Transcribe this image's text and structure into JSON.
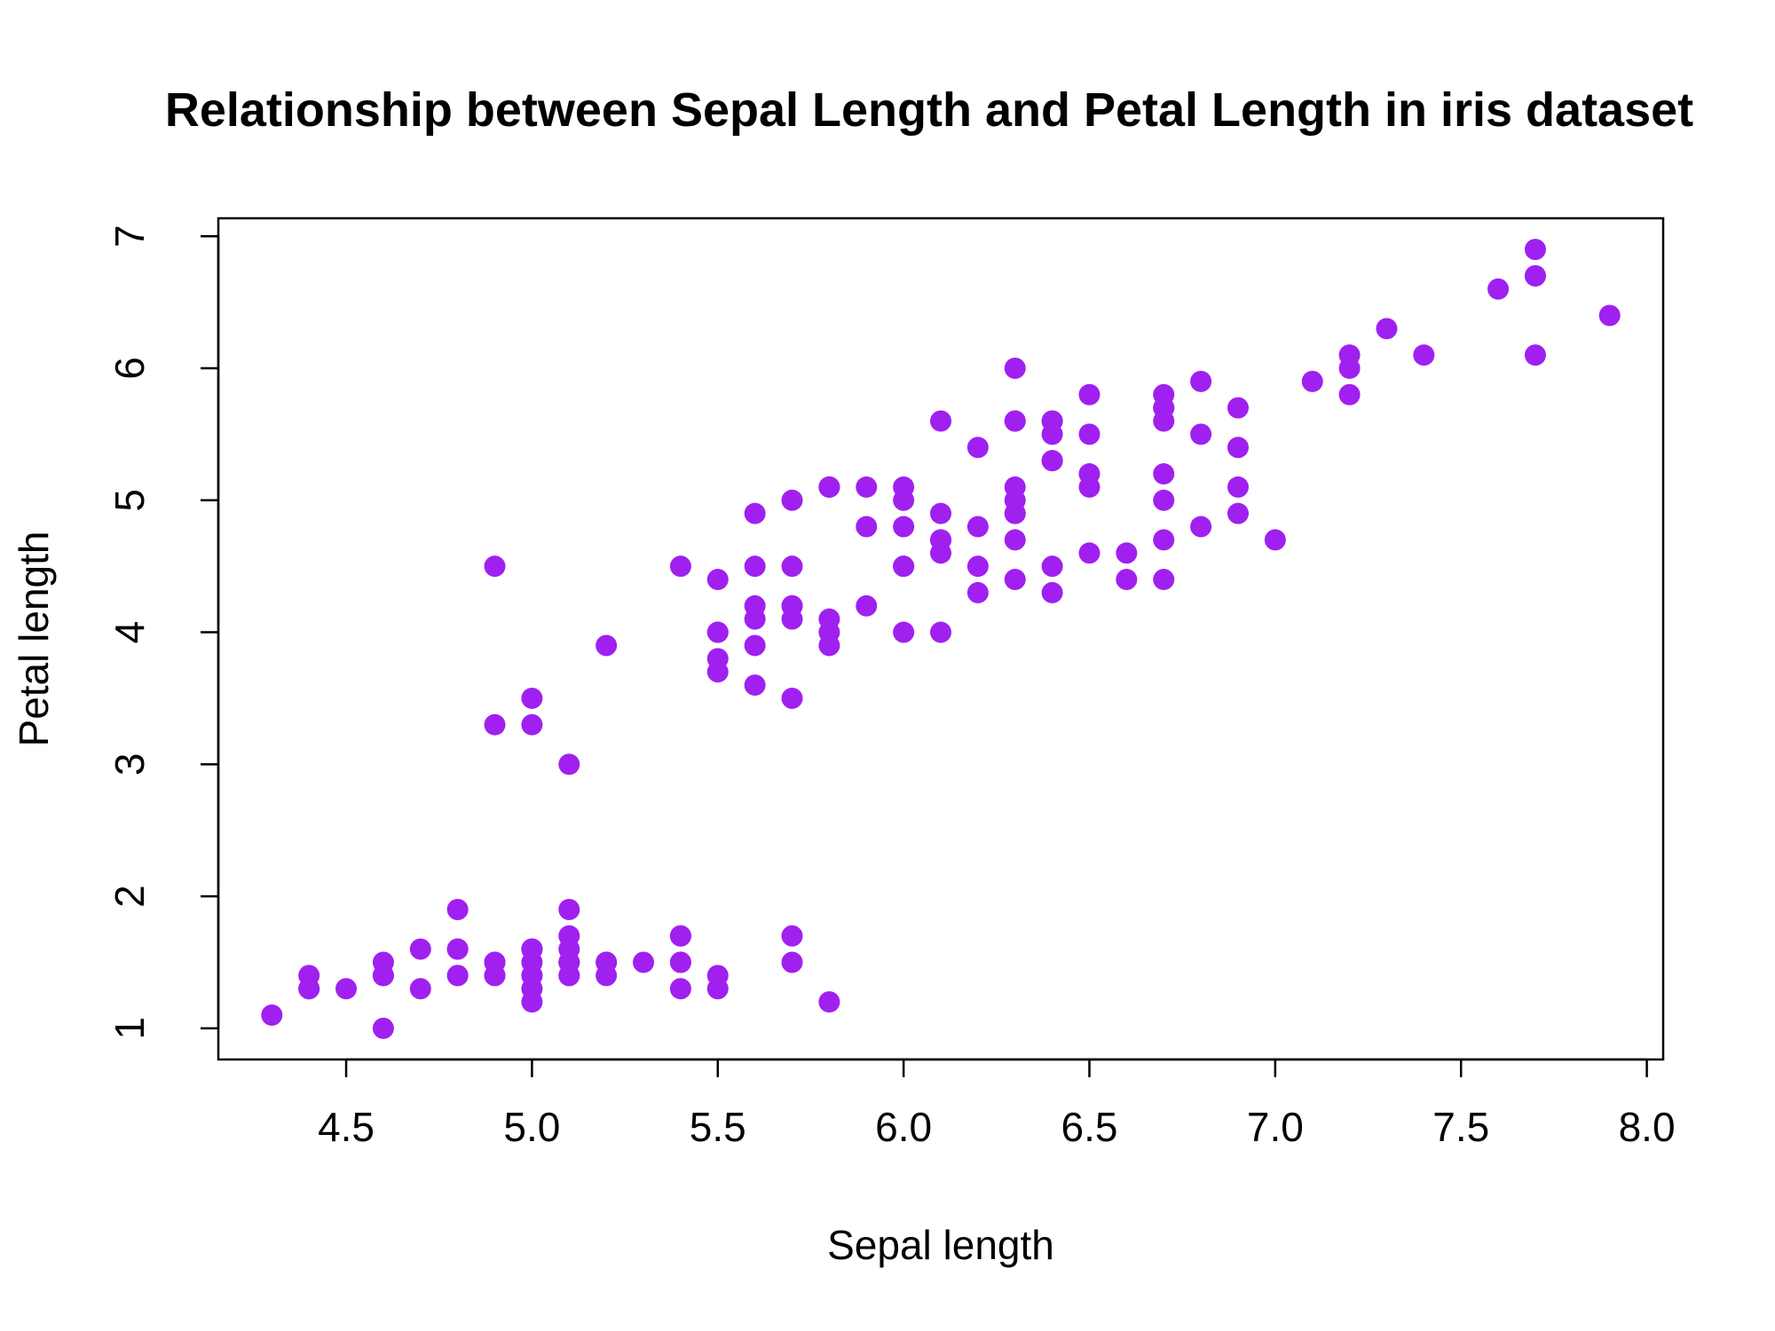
{
  "chart_data": {
    "type": "scatter",
    "title": "Relationship between Sepal Length and Petal Length in iris dataset",
    "xlabel": "Sepal length",
    "ylabel": "Petal length",
    "xlim": [
      4.3,
      7.9
    ],
    "ylim": [
      1.0,
      6.9
    ],
    "x_ticks": [
      4.5,
      5.0,
      5.5,
      6.0,
      6.5,
      7.0,
      7.5,
      8.0
    ],
    "x_tick_labels": [
      "4.5",
      "5.0",
      "5.5",
      "6.0",
      "6.5",
      "7.0",
      "7.5",
      "8.0"
    ],
    "y_ticks": [
      1,
      2,
      3,
      4,
      5,
      6,
      7
    ],
    "y_tick_labels": [
      "1",
      "2",
      "3",
      "4",
      "5",
      "6",
      "7"
    ],
    "grid": false,
    "legend": "none",
    "point_color": "#A020F0",
    "series": [
      {
        "points": [
          [
            5.1,
            1.4
          ],
          [
            4.9,
            1.4
          ],
          [
            4.7,
            1.3
          ],
          [
            4.6,
            1.5
          ],
          [
            5.0,
            1.4
          ],
          [
            5.4,
            1.7
          ],
          [
            4.6,
            1.4
          ],
          [
            5.0,
            1.5
          ],
          [
            4.4,
            1.4
          ],
          [
            4.9,
            1.5
          ],
          [
            5.4,
            1.5
          ],
          [
            4.8,
            1.6
          ],
          [
            4.8,
            1.4
          ],
          [
            4.3,
            1.1
          ],
          [
            5.8,
            1.2
          ],
          [
            5.7,
            1.5
          ],
          [
            5.4,
            1.3
          ],
          [
            5.1,
            1.4
          ],
          [
            5.7,
            1.7
          ],
          [
            5.1,
            1.5
          ],
          [
            5.4,
            1.7
          ],
          [
            5.1,
            1.5
          ],
          [
            4.6,
            1.0
          ],
          [
            5.1,
            1.7
          ],
          [
            4.8,
            1.9
          ],
          [
            5.0,
            1.6
          ],
          [
            5.0,
            1.6
          ],
          [
            5.2,
            1.5
          ],
          [
            5.2,
            1.4
          ],
          [
            4.7,
            1.6
          ],
          [
            4.8,
            1.6
          ],
          [
            5.4,
            1.5
          ],
          [
            5.2,
            1.5
          ],
          [
            5.5,
            1.4
          ],
          [
            4.9,
            1.5
          ],
          [
            5.0,
            1.2
          ],
          [
            5.5,
            1.3
          ],
          [
            4.9,
            1.4
          ],
          [
            4.4,
            1.3
          ],
          [
            5.1,
            1.5
          ],
          [
            5.0,
            1.3
          ],
          [
            4.5,
            1.3
          ],
          [
            4.4,
            1.3
          ],
          [
            5.0,
            1.6
          ],
          [
            5.1,
            1.9
          ],
          [
            4.8,
            1.4
          ],
          [
            5.1,
            1.6
          ],
          [
            4.6,
            1.4
          ],
          [
            5.3,
            1.5
          ],
          [
            5.0,
            1.4
          ],
          [
            7.0,
            4.7
          ],
          [
            6.4,
            4.5
          ],
          [
            6.9,
            4.9
          ],
          [
            5.5,
            4.0
          ],
          [
            6.5,
            4.6
          ],
          [
            5.7,
            4.5
          ],
          [
            6.3,
            4.7
          ],
          [
            4.9,
            3.3
          ],
          [
            6.6,
            4.6
          ],
          [
            5.2,
            3.9
          ],
          [
            5.0,
            3.5
          ],
          [
            5.9,
            4.2
          ],
          [
            6.0,
            4.0
          ],
          [
            6.1,
            4.7
          ],
          [
            5.6,
            3.6
          ],
          [
            6.7,
            4.4
          ],
          [
            5.6,
            4.5
          ],
          [
            5.8,
            4.1
          ],
          [
            6.2,
            4.5
          ],
          [
            5.6,
            3.9
          ],
          [
            5.9,
            4.8
          ],
          [
            6.1,
            4.0
          ],
          [
            6.3,
            4.9
          ],
          [
            6.1,
            4.7
          ],
          [
            6.4,
            4.3
          ],
          [
            6.6,
            4.4
          ],
          [
            6.8,
            4.8
          ],
          [
            6.7,
            5.0
          ],
          [
            6.0,
            4.5
          ],
          [
            5.7,
            3.5
          ],
          [
            5.5,
            3.8
          ],
          [
            5.5,
            3.7
          ],
          [
            5.8,
            3.9
          ],
          [
            6.0,
            5.1
          ],
          [
            5.4,
            4.5
          ],
          [
            6.0,
            4.5
          ],
          [
            6.7,
            4.7
          ],
          [
            6.3,
            4.4
          ],
          [
            5.6,
            4.1
          ],
          [
            5.5,
            4.0
          ],
          [
            5.5,
            4.4
          ],
          [
            6.1,
            4.6
          ],
          [
            5.8,
            4.0
          ],
          [
            5.0,
            3.3
          ],
          [
            5.6,
            4.2
          ],
          [
            5.7,
            4.2
          ],
          [
            5.7,
            4.2
          ],
          [
            6.2,
            4.3
          ],
          [
            5.1,
            3.0
          ],
          [
            5.7,
            4.1
          ],
          [
            6.3,
            6.0
          ],
          [
            5.8,
            5.1
          ],
          [
            7.1,
            5.9
          ],
          [
            6.3,
            5.6
          ],
          [
            6.5,
            5.8
          ],
          [
            7.6,
            6.6
          ],
          [
            4.9,
            4.5
          ],
          [
            7.3,
            6.3
          ],
          [
            6.7,
            5.8
          ],
          [
            7.2,
            6.1
          ],
          [
            6.5,
            5.1
          ],
          [
            6.4,
            5.3
          ],
          [
            6.8,
            5.5
          ],
          [
            5.7,
            5.0
          ],
          [
            5.8,
            5.1
          ],
          [
            6.4,
            5.3
          ],
          [
            6.5,
            5.5
          ],
          [
            7.7,
            6.7
          ],
          [
            7.7,
            6.9
          ],
          [
            6.0,
            5.0
          ],
          [
            6.9,
            5.7
          ],
          [
            5.6,
            4.9
          ],
          [
            7.7,
            6.7
          ],
          [
            6.3,
            4.9
          ],
          [
            6.7,
            5.7
          ],
          [
            7.2,
            6.0
          ],
          [
            6.2,
            4.8
          ],
          [
            6.1,
            4.9
          ],
          [
            6.4,
            5.6
          ],
          [
            7.2,
            5.8
          ],
          [
            7.4,
            6.1
          ],
          [
            7.9,
            6.4
          ],
          [
            6.4,
            5.6
          ],
          [
            6.3,
            5.1
          ],
          [
            6.1,
            5.6
          ],
          [
            7.7,
            6.1
          ],
          [
            6.3,
            5.6
          ],
          [
            6.4,
            5.5
          ],
          [
            6.0,
            4.8
          ],
          [
            6.9,
            5.4
          ],
          [
            6.7,
            5.6
          ],
          [
            6.9,
            5.1
          ],
          [
            5.8,
            5.1
          ],
          [
            6.8,
            5.9
          ],
          [
            6.7,
            5.7
          ],
          [
            6.7,
            5.2
          ],
          [
            6.3,
            5.0
          ],
          [
            6.5,
            5.2
          ],
          [
            6.2,
            5.4
          ],
          [
            5.9,
            5.1
          ]
        ]
      }
    ]
  }
}
